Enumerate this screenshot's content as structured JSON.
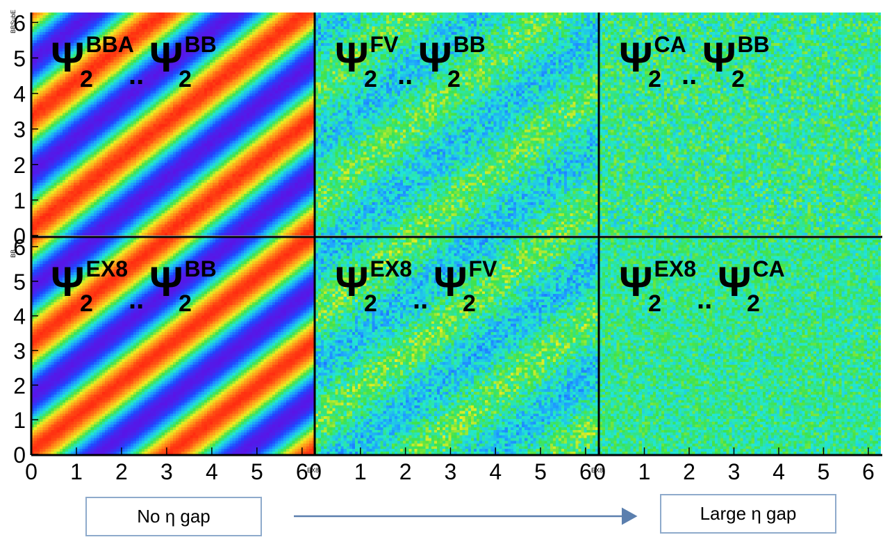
{
  "chart_data": {
    "type": "heatmap",
    "layout": "2x3 grid of 2D correlation histograms",
    "x_range": [
      0,
      6.28
    ],
    "y_range": [
      0,
      6.28
    ],
    "x_ticks": [
      "0",
      "1",
      "2",
      "3",
      "4",
      "5",
      "6"
    ],
    "y_ticks": [
      "0",
      "1",
      "2",
      "3",
      "4",
      "5",
      "6"
    ],
    "y_axis_titles": [
      "BBSubE",
      "BB"
    ],
    "x_axis_titles": [
      "EX8",
      "EX8"
    ],
    "colormap": [
      "#5a14e6",
      "#1f46ff",
      "#1ea0ff",
      "#22e6d4",
      "#3fe34a",
      "#f0ee22",
      "#ff9a1a",
      "#ff2a10"
    ],
    "panels": [
      {
        "row": 0,
        "col": 0,
        "psi_a": "BBA",
        "psi_b": "BB",
        "harmonic": 2,
        "modulation_amplitude": 1.0,
        "noise": 0.03,
        "phase": 0.4
      },
      {
        "row": 0,
        "col": 1,
        "psi_a": "FV",
        "psi_b": "BB",
        "harmonic": 2,
        "modulation_amplitude": 0.4,
        "noise": 0.12,
        "phase": 2.0
      },
      {
        "row": 0,
        "col": 2,
        "psi_a": "CA",
        "psi_b": "BB",
        "harmonic": 2,
        "modulation_amplitude": 0.0,
        "noise": 0.12,
        "phase": 0
      },
      {
        "row": 1,
        "col": 0,
        "psi_a": "EX8",
        "psi_b": "BB",
        "harmonic": 2,
        "modulation_amplitude": 1.0,
        "noise": 0.02,
        "phase": 0.2
      },
      {
        "row": 1,
        "col": 1,
        "psi_a": "EX8",
        "psi_b": "FV",
        "harmonic": 2,
        "modulation_amplitude": 0.45,
        "noise": 0.12,
        "phase": 1.8
      },
      {
        "row": 1,
        "col": 2,
        "psi_a": "EX8",
        "psi_b": "CA",
        "harmonic": 2,
        "modulation_amplitude": 0.0,
        "noise": 0.1,
        "phase": 0
      }
    ],
    "psi_symbol": "Ψ",
    "separator": "..",
    "grid": false
  },
  "annotations": {
    "left_label": "No η gap",
    "right_label": "Large η gap",
    "arrow_direction": "left-to-right",
    "box_border_color": "#8eaacb",
    "arrow_color": "#5b7fae"
  }
}
